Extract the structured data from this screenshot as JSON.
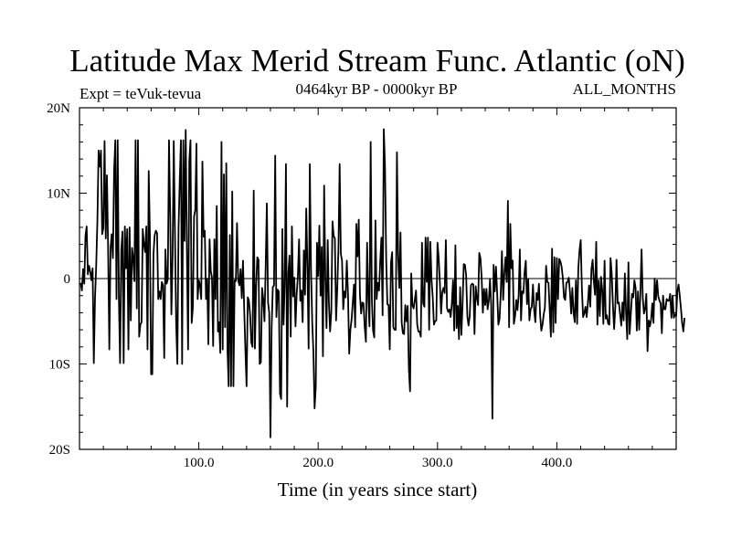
{
  "chart_data": {
    "type": "line",
    "title": "Latitude Max Merid Stream Func. Atlantic (oN)",
    "experiment_label": "Expt = teVuk-tevua",
    "period_label": "0464kyr BP - 0000kyr BP",
    "season_label": "ALL_MONTHS",
    "xlabel": "Time (in years since start)",
    "ylabel": "",
    "xlim": [
      0,
      500
    ],
    "ylim": [
      -20,
      20
    ],
    "x_ticks": [
      100,
      200,
      300,
      400
    ],
    "x_tick_labels": [
      "100.0",
      "200.0",
      "300.0",
      "400.0"
    ],
    "y_ticks": [
      -20,
      -10,
      0,
      10,
      20
    ],
    "y_tick_labels": [
      "20S",
      "10S",
      "0",
      "10N",
      "20N"
    ],
    "zero_line": true,
    "grid": false,
    "line_color": "#000000",
    "series": [
      {
        "x_start": 1,
        "x_step": 1,
        "values": [
          -0.5,
          -1.4,
          1.1,
          -0.6,
          5.0,
          6.1,
          0.5,
          1.5,
          0.8,
          -0.2,
          1.2,
          -9.9,
          -2.3,
          1.5,
          6.8,
          15.0,
          13.1,
          15.0,
          5.2,
          5.9,
          16.1,
          4.7,
          12.1,
          3.4,
          -8.3,
          3.6,
          5.2,
          2.4,
          12.6,
          16.2,
          -2.4,
          16.2,
          -2.3,
          -9.9,
          3.3,
          5.5,
          -9.9,
          6.1,
          1.2,
          5.8,
          -8.3,
          6.0,
          -4.9,
          3.6,
          2.4,
          -0.3,
          16.2,
          -3.5,
          16.2,
          -6.8,
          -5.4,
          -5.1,
          5.8,
          4.0,
          3.1,
          6.1,
          -8.3,
          12.6,
          5.2,
          -11.2,
          -11.2,
          2.9,
          5.1,
          5.6,
          5.3,
          -2.4,
          -1.5,
          -2.4,
          -0.4,
          -0.8,
          -9.3,
          3.4,
          -0.6,
          -0.1,
          16.2,
          7.5,
          -4.2,
          2.5,
          16.1,
          5.2,
          -5.2,
          -10.0,
          5.9,
          11.5,
          16.2,
          -10.0,
          16.2,
          4.4,
          17.4,
          3.4,
          -8.3,
          13.7,
          16.2,
          -5.2,
          -3.4,
          7.3,
          8.0,
          15.8,
          -2.4,
          -0.2,
          -0.8,
          -2.4,
          13.7,
          4.9,
          5.6,
          -2.4,
          0.0,
          -7.7,
          4.6,
          0.9,
          0.1,
          -7.9,
          4.6,
          -2.4,
          8.5,
          -6.2,
          -5.1,
          -8.7,
          16.0,
          -8.3,
          12.2,
          -5.7,
          13.5,
          -8.3,
          -12.6,
          5.1,
          -12.6,
          10.2,
          -12.6,
          -0.2,
          -0.3,
          6.5,
          -0.2,
          -0.8,
          1.1,
          -2.3,
          2.1,
          -3.5,
          -8.3,
          -12.6,
          -2.2,
          -2.6,
          -4.3,
          -7.5,
          -8.0,
          10.3,
          -8.2,
          -0.9,
          2.5,
          2.2,
          -10.0,
          -9.8,
          -1.1,
          -2.4,
          -5.0,
          1.3,
          8.8,
          -2.8,
          -4.0,
          -18.6,
          -5.7,
          -1.0,
          -0.8,
          14.4,
          -4.5,
          -1.3,
          -1.5,
          -13.5,
          -14.1,
          5.8,
          -5.4,
          -0.5,
          13.4,
          -15.0,
          0.6,
          2.7,
          -6.8,
          6.1,
          -2.1,
          0.1,
          -5.6,
          -1.8,
          0.3,
          4.6,
          -2.6,
          -1.4,
          -5.1,
          3.3,
          -1.9,
          8.2,
          1.3,
          -8.2,
          13.4,
          1.2,
          -5.0,
          -8.6,
          -15.2,
          -12.7,
          4.2,
          0.3,
          6.2,
          -2.0,
          3.7,
          -9.1,
          10.9,
          0.1,
          -5.8,
          4.5,
          -2.8,
          -6.2,
          -3.9,
          6.7,
          5.0,
          4.7,
          -4.9,
          -1.2,
          3.5,
          13.4,
          2.9,
          2.1,
          -3.6,
          -1.5,
          -2.2,
          2.1,
          -1.8,
          -8.8,
          -6.0,
          -4.8,
          -2.8,
          -0.7,
          -5.7,
          6.4,
          2.6,
          6.9,
          -1.9,
          -4.1,
          -2.8,
          -2.9,
          -5.7,
          -7.4,
          4.2,
          -2.3,
          -5.6,
          16.0,
          -2.5,
          -6.1,
          -6.9,
          6.8,
          -2.4,
          -0.5,
          -1.4,
          2.0,
          4.8,
          -4.3,
          17.5,
          13.1,
          2.3,
          -3.0,
          -3.1,
          -8.3,
          1.8,
          3.1,
          -5.7,
          -6.0,
          -6.0,
          14.8,
          2.7,
          -1.1,
          5.4,
          -5.2,
          -6.4,
          -6.5,
          -3.1,
          -5.0,
          -3.2,
          -10.6,
          -13.2,
          0.6,
          -3.1,
          -3.5,
          -2.5,
          -1.4,
          -5.4,
          -6.2,
          -6.2,
          -6.8,
          4.2,
          -2.9,
          -3.3,
          4.8,
          -0.4,
          4.8,
          -6.0,
          4.3,
          -0.1,
          -2.2,
          -5.4,
          -5.0,
          -4.9,
          4.2,
          2.4,
          -0.5,
          -4.1,
          -1.6,
          -1.1,
          -1.7,
          4.5,
          -3.5,
          -3.9,
          -3.6,
          -4.5,
          -3.0,
          -0.2,
          -6.1,
          3.9,
          -5.8,
          -3.2,
          -7.1,
          -1.0,
          -6.6,
          -3.0,
          1.7,
          1.6,
          0.4,
          -4.4,
          -5.5,
          -4.4,
          -0.8,
          -0.6,
          -0.7,
          -6.5,
          -0.9,
          -2.3,
          -3.1,
          3.0,
          2.4,
          0.1,
          -4.0,
          -1.2,
          -3.1,
          -1.2,
          -3.6,
          -2.6,
          -0.1,
          -3.1,
          -16.4,
          1.6,
          -1.5,
          1.4,
          -1.7,
          -5.4,
          -4.7,
          -1.7,
          3.2,
          -2.5,
          0.6,
          2.5,
          -0.4,
          9.1,
          -5.7,
          6.4,
          1.2,
          2.1,
          -5.3,
          -4.4,
          -2.5,
          -3.7,
          -2.0,
          3.4,
          -4.9,
          -1.5,
          -1.7,
          0.8,
          2.1,
          -3.0,
          -0.1,
          -4.9,
          -3.6,
          -3.3,
          -0.7,
          -3.7,
          -5.1,
          -1.7,
          -2.5,
          -0.6,
          -4.3,
          -6.1,
          -5.4,
          -4.2,
          -3.4,
          1.5,
          -0.4,
          -0.5,
          -3.6,
          -6.8,
          3.5,
          -6.3,
          2.5,
          -5.2,
          2.4,
          -2.4,
          2.3,
          2.0,
          1.4,
          0.1,
          -2.2,
          -2.5,
          -0.5,
          -0.4,
          0.1,
          -1.6,
          -4.1,
          -1.1,
          -4.0,
          -5.1,
          -0.2,
          -5.3,
          1.2,
          3.3,
          4.5,
          -1.2,
          -4.5,
          -4.1,
          -3.3,
          -4.5,
          -2.9,
          -0.8,
          -3.3,
          1.1,
          2.2,
          -0.3,
          -1.9,
          4.3,
          -5.4,
          -0.2,
          -4.4,
          0.2,
          -1.3,
          -5.3,
          2.1,
          -4.7,
          -4.3,
          -5.3,
          -5.4,
          2.4,
          0.6,
          -3.1,
          -5.9,
          -3.3,
          2.2,
          -2.9,
          -2.8,
          -4.2,
          -5.5,
          -2.8,
          -4.9,
          0.6,
          -4.0,
          -7.1,
          1.9,
          -6.5,
          -4.2,
          -1.8,
          -2.2,
          -0.2,
          -1.1,
          -6.1,
          -1.5,
          -6.0,
          -1.7,
          3.4,
          -2.2,
          -4.1,
          -3.5,
          -1.8,
          -8.5,
          -4.9,
          -5.6,
          -4.8,
          -2.9,
          -5.2,
          0.0,
          -2.5,
          -0.2,
          -2.1,
          -2.6,
          -2.9,
          -6.4,
          -2.0,
          -3.6,
          -3.6,
          -2.4,
          -2.6,
          -2.6,
          -1.8,
          -4.6,
          -2.0,
          -4.6,
          -4.2,
          -4.4,
          -1.5,
          -0.7,
          -2.0,
          -3.5,
          -5.2,
          -6.2,
          -4.6
        ]
      }
    ]
  }
}
